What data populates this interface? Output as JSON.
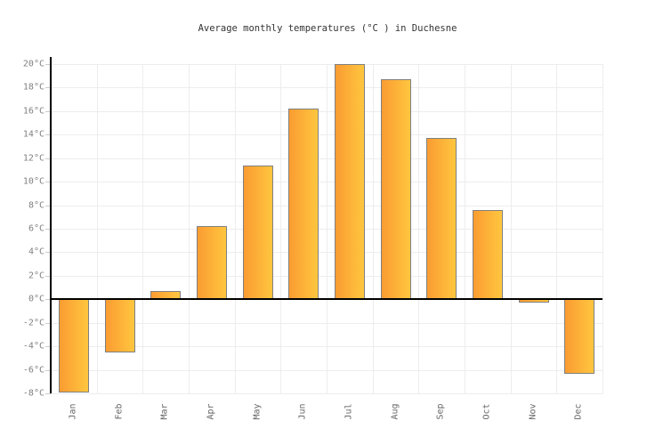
{
  "title": "Average monthly temperatures (°C ) in Duchesne",
  "chart_data": {
    "type": "bar",
    "title": "Average monthly temperatures (°C ) in Duchesne",
    "categories": [
      "Jan",
      "Feb",
      "Mar",
      "Apr",
      "May",
      "Jun",
      "Jul",
      "Aug",
      "Sep",
      "Oct",
      "Nov",
      "Dec"
    ],
    "values": [
      -7.9,
      -4.5,
      0.7,
      6.2,
      11.4,
      16.2,
      20.0,
      18.7,
      13.7,
      7.6,
      -0.3,
      -6.3
    ],
    "xlabel": "",
    "ylabel": "",
    "ylim": [
      -8,
      20
    ],
    "ytick_step": 2,
    "ytick_suffix": "°C",
    "grid": true,
    "legend": "none",
    "colors": {
      "bar_gradient_left": "#fa9c32",
      "bar_gradient_right": "#ffc63f",
      "bar_border": "#808080",
      "gridline": "#ededed",
      "axis_line": "#000000",
      "zero_line": "#000000",
      "y_label_text": "#808080",
      "x_label_text": "#666666",
      "title_text": "#333333"
    }
  }
}
